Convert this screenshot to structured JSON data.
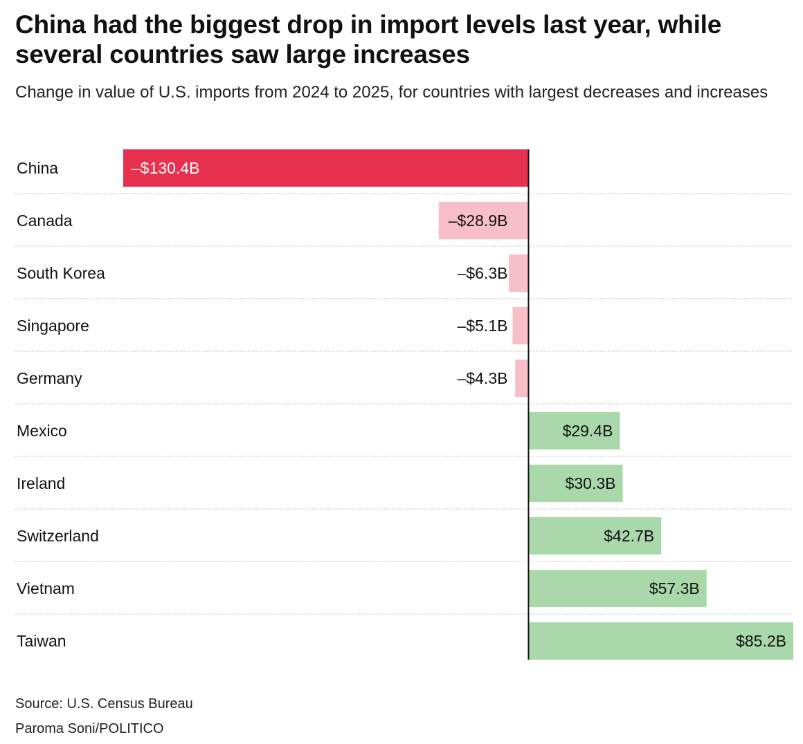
{
  "chart_data": {
    "type": "bar",
    "orientation": "horizontal",
    "title": "China had the biggest drop in import levels last year, while several countries saw large increases",
    "subtitle": "Change in value of U.S. imports from 2024 to 2025, for countries with largest decreases and increases",
    "categories": [
      "China",
      "Canada",
      "South Korea",
      "Singapore",
      "Germany",
      "Mexico",
      "Ireland",
      "Switzerland",
      "Vietnam",
      "Taiwan"
    ],
    "values": [
      -130.4,
      -28.9,
      -6.3,
      -5.1,
      -4.3,
      29.4,
      30.3,
      42.7,
      57.3,
      85.2
    ],
    "value_labels": [
      "–$130.4B",
      "–$28.9B",
      "–$6.3B",
      "–$5.1B",
      "–$4.3B",
      "$29.4B",
      "$30.3B",
      "$42.7B",
      "$57.3B",
      "$85.2B"
    ],
    "unit": "billions of U.S. dollars",
    "xlim": [
      -130.4,
      85.2
    ],
    "xlabel": "",
    "ylabel": "",
    "colors": {
      "largest_decrease": "#e8304f",
      "decrease": "#f9bfc8",
      "increase": "#a9d9aa",
      "zero_axis": "#111111",
      "row_separator": "#bdbdbd",
      "label_on_dark": "#ffffff",
      "label": "#111111"
    },
    "source": "Source: U.S. Census Bureau",
    "credit": "Paroma Soni/POLITICO"
  }
}
